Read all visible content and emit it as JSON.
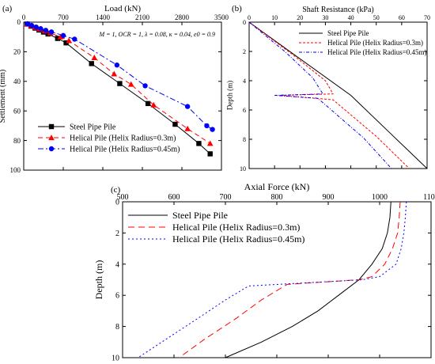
{
  "figure": {
    "panel_labels": [
      "(a)",
      "(b)",
      "(c)"
    ]
  },
  "chart_data": [
    {
      "type": "line",
      "panel": "(a)",
      "xlabel": "Load (kN)",
      "ylabel": "Settlement (mm)",
      "xlim": [
        0,
        3500
      ],
      "ylim": [
        0,
        100
      ],
      "x_ticks": [
        0,
        700,
        1400,
        2100,
        2800,
        3500
      ],
      "y_ticks": [
        0,
        20,
        40,
        60,
        80,
        100
      ],
      "tick_position": "top",
      "y_inverted": true,
      "legend_position": "bottom-left",
      "annotation": "M = 1, OCR = 1, λ = 0.08, κ = 0.04, e0 = 0.9",
      "series": [
        {
          "name": "Steel Pipe Pile",
          "color": "#000000",
          "dash": "solid",
          "marker": "square",
          "points": [
            [
              0,
              0
            ],
            [
              60,
              1.3
            ],
            [
              130,
              2.7
            ],
            [
              200,
              4
            ],
            [
              270,
              5.3
            ],
            [
              350,
              6.7
            ],
            [
              430,
              8
            ],
            [
              600,
              11
            ],
            [
              750,
              14
            ],
            [
              1200,
              28
            ],
            [
              1700,
              41.5
            ],
            [
              2200,
              55
            ],
            [
              2680,
              69
            ],
            [
              3100,
              82
            ],
            [
              3300,
              89
            ]
          ]
        },
        {
          "name": "Helical Pile (Helix Radius=0.3m)",
          "color": "#ff0000",
          "dash": "6,4",
          "marker": "triangle",
          "points": [
            [
              0,
              0
            ],
            [
              60,
              1.2
            ],
            [
              130,
              2.4
            ],
            [
              200,
              3.6
            ],
            [
              280,
              4.8
            ],
            [
              370,
              6
            ],
            [
              470,
              7.3
            ],
            [
              650,
              10
            ],
            [
              800,
              12.5
            ],
            [
              1250,
              24
            ],
            [
              1600,
              35
            ],
            [
              1900,
              42
            ],
            [
              2300,
              56
            ],
            [
              2900,
              72
            ],
            [
              3300,
              82
            ]
          ]
        },
        {
          "name": "Helical Pile (Helix Radius=0.45m)",
          "color": "#0000ff",
          "dash": "7,3,2,3",
          "marker": "circle",
          "points": [
            [
              0,
              0
            ],
            [
              70,
              1.1
            ],
            [
              140,
              2.2
            ],
            [
              220,
              3.3
            ],
            [
              300,
              4.4
            ],
            [
              390,
              5.5
            ],
            [
              490,
              6.6
            ],
            [
              700,
              9
            ],
            [
              900,
              11.5
            ],
            [
              1650,
              29
            ],
            [
              2150,
              43
            ],
            [
              2900,
              57
            ],
            [
              3240,
              70
            ],
            [
              3340,
              72.5
            ]
          ]
        }
      ]
    },
    {
      "type": "line",
      "panel": "(b)",
      "xlabel": "Shaft Resistance (kPa)",
      "ylabel": "Depth (m)",
      "xlim": [
        0,
        70
      ],
      "ylim": [
        0,
        10
      ],
      "x_ticks": [
        0,
        10,
        20,
        30,
        40,
        50,
        60,
        70
      ],
      "y_ticks": [
        0,
        2,
        4,
        6,
        8,
        10
      ],
      "tick_position": "top",
      "y_inverted": true,
      "legend_position": "top-right",
      "series": [
        {
          "name": "Steel Pipe Pile",
          "color": "#000000",
          "dash": "solid",
          "points": [
            [
              0,
              0
            ],
            [
              20,
              2.5
            ],
            [
              40,
              5
            ],
            [
              55,
              7.5
            ],
            [
              70,
              10
            ]
          ]
        },
        {
          "name": "Helical Pile (Helix Radius=0.3m)",
          "color": "#ff0000",
          "dash": "3,2",
          "points": [
            [
              0,
              0
            ],
            [
              17,
              2.2
            ],
            [
              30,
              4
            ],
            [
              33,
              4.9
            ],
            [
              12,
              5
            ],
            [
              33,
              5.3
            ],
            [
              50,
              7.8
            ],
            [
              63,
              10
            ]
          ]
        },
        {
          "name": "Helical Pile (Helix Radius=0.45m)",
          "color": "#0000ff",
          "dash": "4,2,1,2",
          "points": [
            [
              0,
              0
            ],
            [
              14,
              2
            ],
            [
              25,
              3.8
            ],
            [
              29,
              4.9
            ],
            [
              10,
              5
            ],
            [
              27,
              5.2
            ],
            [
              45,
              7.9
            ],
            [
              56,
              10
            ]
          ]
        }
      ]
    },
    {
      "type": "line",
      "panel": "(c)",
      "xlabel": "Axial Force (kN)",
      "ylabel": "Depth (m)",
      "xlim": [
        500,
        1100
      ],
      "ylim": [
        0,
        10
      ],
      "x_ticks": [
        500,
        600,
        700,
        800,
        900,
        1000,
        1100
      ],
      "y_ticks": [
        0,
        2,
        4,
        6,
        8,
        10
      ],
      "tick_position": "top",
      "y_inverted": true,
      "legend_position": "top-left",
      "series": [
        {
          "name": "Steel Pipe Pile",
          "color": "#000000",
          "dash": "solid",
          "points": [
            [
              1022,
              0
            ],
            [
              1020,
              1
            ],
            [
              1015,
              2
            ],
            [
              1005,
              3
            ],
            [
              985,
              4
            ],
            [
              960,
              5
            ],
            [
              920,
              6
            ],
            [
              880,
              7
            ],
            [
              830,
              8
            ],
            [
              770,
              9
            ],
            [
              700,
              10
            ]
          ]
        },
        {
          "name": "Helical Pile (Helix Radius=0.3m)",
          "color": "#ff0000",
          "dash": "8,5",
          "points": [
            [
              1040,
              0
            ],
            [
              1038,
              1
            ],
            [
              1035,
              2
            ],
            [
              1025,
              3
            ],
            [
              1010,
              4
            ],
            [
              985,
              4.8
            ],
            [
              960,
              5
            ],
            [
              820,
              5.3
            ],
            [
              770,
              6.3
            ],
            [
              720,
              7.5
            ],
            [
              660,
              8.8
            ],
            [
              610,
              10
            ]
          ]
        },
        {
          "name": "Helical Pile (Helix Radius=0.45m)",
          "color": "#0000ff",
          "dash": "2,3",
          "points": [
            [
              1052,
              0
            ],
            [
              1050,
              1
            ],
            [
              1047,
              2
            ],
            [
              1042,
              3
            ],
            [
              1032,
              4
            ],
            [
              1000,
              4.8
            ],
            [
              967,
              5
            ],
            [
              745,
              5.4
            ],
            [
              700,
              6.3
            ],
            [
              650,
              7.4
            ],
            [
              590,
              8.7
            ],
            [
              530,
              10
            ]
          ]
        }
      ]
    }
  ]
}
